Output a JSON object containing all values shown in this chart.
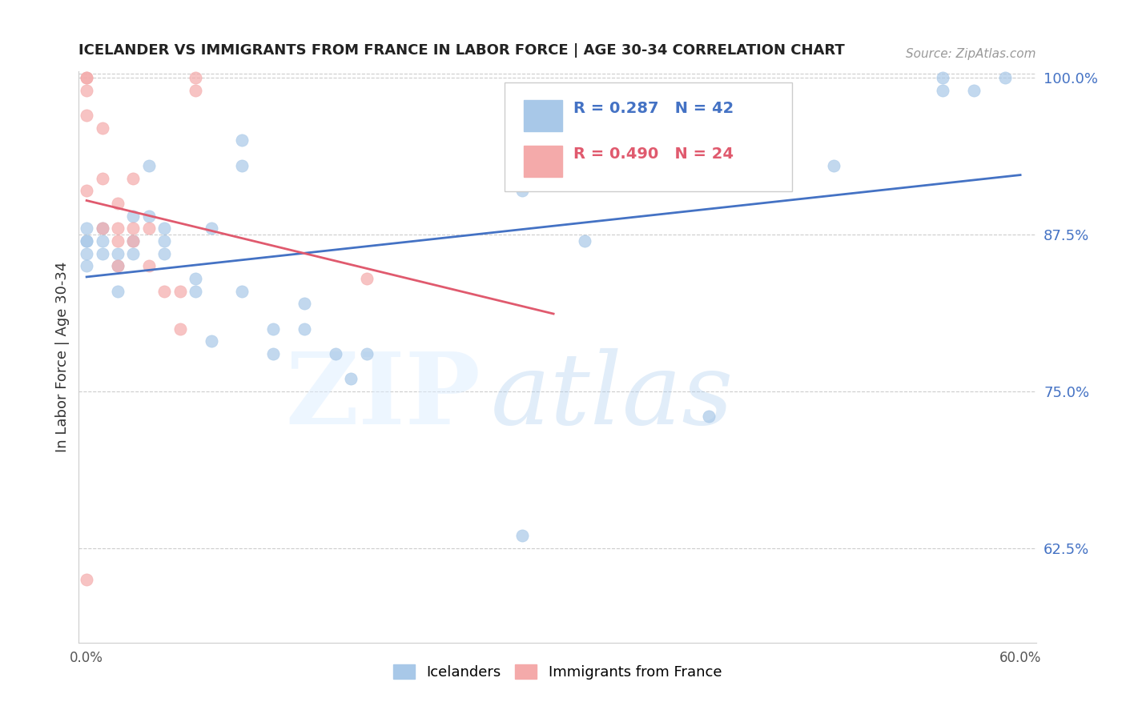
{
  "title": "ICELANDER VS IMMIGRANTS FROM FRANCE IN LABOR FORCE | AGE 30-34 CORRELATION CHART",
  "source": "Source: ZipAtlas.com",
  "ylabel": "In Labor Force | Age 30-34",
  "x_min": 0.0,
  "x_max": 0.6,
  "y_min": 0.55,
  "y_max": 1.005,
  "yticks": [
    0.625,
    0.75,
    0.875,
    1.0
  ],
  "ytick_labels": [
    "62.5%",
    "75.0%",
    "87.5%",
    "100.0%"
  ],
  "xticks": [
    0.0,
    0.1,
    0.2,
    0.3,
    0.4,
    0.5,
    0.6
  ],
  "xtick_labels": [
    "0.0%",
    "",
    "",
    "",
    "",
    "",
    "60.0%"
  ],
  "blue_R": 0.287,
  "blue_N": 42,
  "pink_R": 0.49,
  "pink_N": 24,
  "blue_color": "#a8c8e8",
  "pink_color": "#f4aaaa",
  "trend_blue": "#4472c4",
  "trend_pink": "#e05a6e",
  "legend_label_blue": "Icelanders",
  "legend_label_pink": "Immigrants from France",
  "blue_x": [
    0.0,
    0.0,
    0.0,
    0.0,
    0.0,
    0.01,
    0.01,
    0.01,
    0.02,
    0.02,
    0.02,
    0.03,
    0.03,
    0.03,
    0.04,
    0.04,
    0.05,
    0.05,
    0.05,
    0.07,
    0.07,
    0.08,
    0.08,
    0.1,
    0.1,
    0.1,
    0.12,
    0.12,
    0.14,
    0.14,
    0.16,
    0.17,
    0.18,
    0.28,
    0.28,
    0.32,
    0.4,
    0.48,
    0.55,
    0.55,
    0.57,
    0.59
  ],
  "blue_y": [
    0.88,
    0.87,
    0.87,
    0.86,
    0.85,
    0.88,
    0.87,
    0.86,
    0.86,
    0.85,
    0.83,
    0.89,
    0.87,
    0.86,
    0.93,
    0.89,
    0.88,
    0.87,
    0.86,
    0.84,
    0.83,
    0.88,
    0.79,
    0.95,
    0.93,
    0.83,
    0.8,
    0.78,
    0.82,
    0.8,
    0.78,
    0.76,
    0.78,
    0.91,
    0.635,
    0.87,
    0.73,
    0.93,
    1.0,
    0.99,
    0.99,
    1.0
  ],
  "pink_x": [
    0.0,
    0.0,
    0.0,
    0.0,
    0.0,
    0.0,
    0.01,
    0.01,
    0.01,
    0.02,
    0.02,
    0.02,
    0.02,
    0.03,
    0.03,
    0.03,
    0.04,
    0.04,
    0.05,
    0.06,
    0.06,
    0.07,
    0.07,
    0.18
  ],
  "pink_y": [
    1.0,
    1.0,
    0.99,
    0.97,
    0.91,
    0.6,
    0.96,
    0.92,
    0.88,
    0.9,
    0.88,
    0.87,
    0.85,
    0.92,
    0.88,
    0.87,
    0.88,
    0.85,
    0.83,
    0.83,
    0.8,
    1.0,
    0.99,
    0.84
  ]
}
